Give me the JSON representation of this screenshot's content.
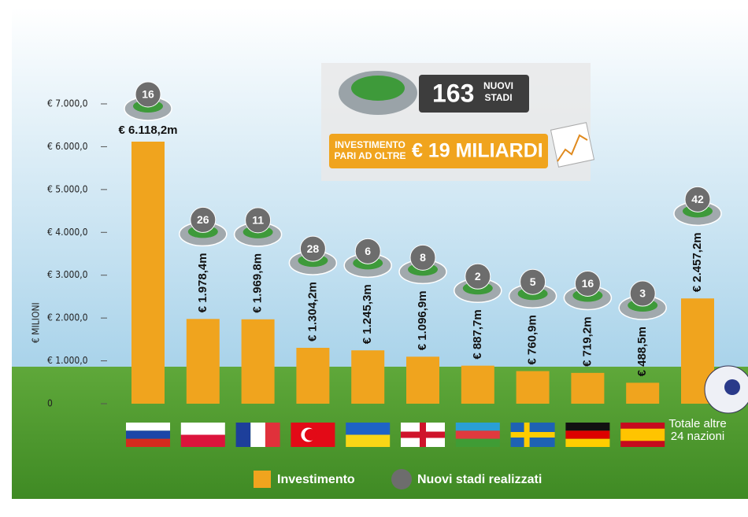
{
  "chart_data": {
    "type": "bar",
    "y_axis_label": "€ MILIONI",
    "categories": [
      null,
      null,
      null,
      null,
      null,
      null,
      null,
      null,
      null,
      null,
      "Totale altre 24 nazioni"
    ],
    "series": [
      {
        "name": "Investimento",
        "color": "#f0a41e",
        "values": [
          6118.2,
          1978.4,
          1969.8,
          1304.2,
          1245.3,
          1096.9,
          887.7,
          760.9,
          719.2,
          488.5,
          2457.2
        ],
        "value_labels": [
          "€ 6.118,2m",
          "€ 1.978,4m",
          "€ 1.969,8m",
          "€ 1.304,2m",
          "€ 1.245,3m",
          "€ 1.096,9m",
          "€ 887,7m",
          "€ 760,9m",
          "€ 719,2m",
          "€ 488,5m",
          "€ 2.457,2m"
        ]
      },
      {
        "name": "Nuovi stadi realizzati",
        "color": "#6d6d6d",
        "values": [
          16,
          26,
          11,
          28,
          6,
          8,
          2,
          5,
          16,
          3,
          42
        ]
      }
    ],
    "ylim": [
      0,
      7000
    ],
    "yticks": [
      {
        "value": 0,
        "label": "0"
      },
      {
        "value": 1000,
        "label": "€ 1.000,0"
      },
      {
        "value": 2000,
        "label": "€ 2.000,0"
      },
      {
        "value": 3000,
        "label": "€ 3.000,0"
      },
      {
        "value": 4000,
        "label": "€ 4.000,0"
      },
      {
        "value": 5000,
        "label": "€ 5.000,0"
      },
      {
        "value": 6000,
        "label": "€ 6.000,0"
      },
      {
        "value": 7000,
        "label": "€ 7.000,0"
      }
    ],
    "annotations": {
      "stadiums_total": "163",
      "stadiums_text": [
        "NUOVI",
        "STADI"
      ],
      "investment_text": [
        "INVESTIMENTO",
        "PARI AD OLTRE"
      ],
      "investment_total": "€ 19 MILIARDI"
    }
  }
}
